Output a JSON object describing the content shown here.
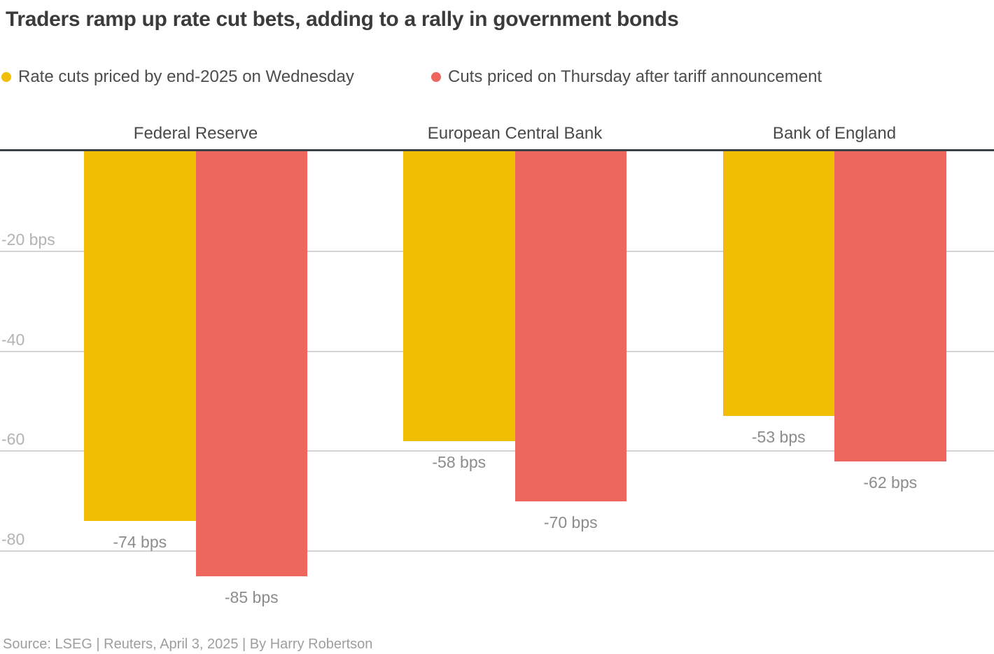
{
  "header": {
    "title": "Traders ramp up rate cut bets, adding to a rally in government bonds"
  },
  "legend": [
    {
      "label": "Rate cuts priced by end-2025 on Wednesday",
      "color": "#F2BE04"
    },
    {
      "label": "Cuts priced on Thursday after tariff announcement",
      "color": "#EE675E"
    }
  ],
  "chart_data": {
    "type": "bar",
    "title": "Traders ramp up rate cut bets, adding to a rally in government bonds",
    "unit": "bps",
    "categories": [
      "Federal Reserve",
      "European Central Bank",
      "Bank of England"
    ],
    "series": [
      {
        "id": "wednesday",
        "name": "Rate cuts priced by end-2025 on Wednesday",
        "color": "#F2BE04",
        "values": [
          -74,
          -58,
          -53
        ],
        "value_labels": [
          "-74 bps",
          "-58 bps",
          "-53 bps"
        ]
      },
      {
        "id": "thursday",
        "name": "Cuts priced on Thursday after tariff announcement",
        "color": "#EE675E",
        "values": [
          -85,
          -70,
          -62
        ],
        "value_labels": [
          "-85 bps",
          "-70 bps",
          "-62 bps"
        ]
      }
    ],
    "y_axis": {
      "ticks": [
        {
          "value": -20,
          "label": "-20 bps"
        },
        {
          "value": -40,
          "label": "-40"
        },
        {
          "value": -60,
          "label": "-60"
        },
        {
          "value": -80,
          "label": "-80"
        }
      ],
      "range": [
        0,
        -90
      ],
      "grid": true
    },
    "baseline_value": 0,
    "layout_hints": {
      "legend_position": "top",
      "bars_grow": "downward"
    }
  },
  "footer": {
    "source": "Source: LSEG | Reuters, April 3, 2025 | By Harry Robertson"
  }
}
